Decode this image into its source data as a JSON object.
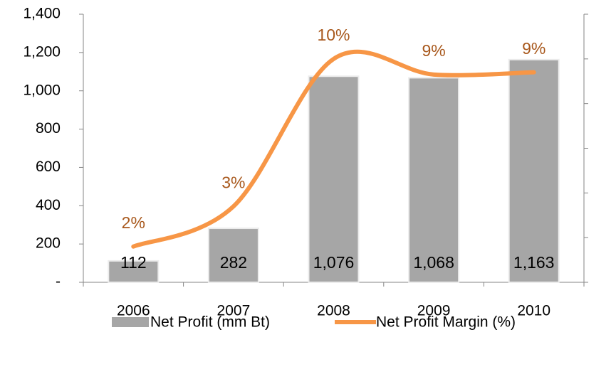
{
  "chart_data": {
    "type": "bar_line",
    "categories": [
      "2006",
      "2007",
      "2008",
      "2009",
      "2010"
    ],
    "series": [
      {
        "name": "Net Profit (mm Bt)",
        "type": "bar",
        "color": "#a6a6a6",
        "values": [
          112,
          282,
          1076,
          1068,
          1163
        ],
        "value_labels": [
          "112",
          "282",
          "1,076",
          "1,068",
          "1,163"
        ]
      },
      {
        "name": "Net Profit Margin (%)",
        "type": "line",
        "axis": "y2",
        "color": "#f79646",
        "values": [
          1.6,
          3.4,
          10.0,
          9.3,
          9.4
        ],
        "value_labels": [
          "2%",
          "3%",
          "10%",
          "9%",
          "9%"
        ]
      }
    ],
    "ylim": [
      0,
      1400
    ],
    "yticks": [
      {
        "value": 0,
        "label": "-"
      },
      200,
      400,
      600,
      800,
      {
        "value": 1000,
        "label": "1,000"
      },
      {
        "value": 1200,
        "label": "1,200"
      },
      {
        "value": 1400,
        "label": "1,400"
      }
    ],
    "y2lim": [
      0,
      12
    ],
    "y2ticks": [
      0,
      2,
      4,
      6,
      8,
      10,
      12
    ],
    "legend": "bottom"
  }
}
